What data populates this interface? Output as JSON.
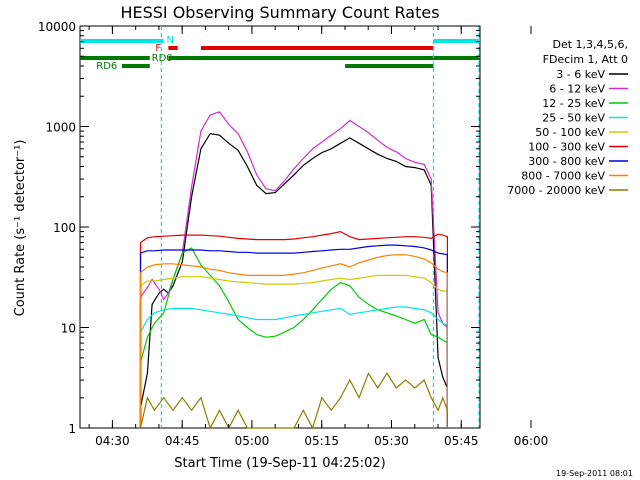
{
  "chart_data": {
    "type": "line",
    "title": "HESSI Observing Summary Count Rates",
    "xlabel": "Start Time (19-Sep-11 04:25:02)",
    "ylabel": "Count Rate (s⁻¹ detector⁻¹)",
    "x_tick_labels": [
      "04:30",
      "04:45",
      "05:00",
      "05:15",
      "05:30",
      "05:45",
      "06:00"
    ],
    "x_range_minutes": [
      -2,
      84
    ],
    "y_scale": "log",
    "y_tick_labels": [
      "1",
      "10",
      "100",
      "1000",
      "10000"
    ],
    "y_range": [
      1,
      10000
    ],
    "footer": "19-Sep-2011 08:01",
    "legend": {
      "header": [
        "Det 1,3,4,5,6,",
        "FDecim 1, Att 0"
      ],
      "entries": [
        {
          "label": "3 - 6 keV",
          "color": "#000000"
        },
        {
          "label": "6 - 12 keV",
          "color": "#d22ad2"
        },
        {
          "label": "12 - 25 keV",
          "color": "#00cc00"
        },
        {
          "label": "25 - 50 keV",
          "color": "#00e5e5"
        },
        {
          "label": "50 - 100 keV",
          "color": "#cccc00"
        },
        {
          "label": "100 - 300 keV",
          "color": "#e00000"
        },
        {
          "label": "300 - 800 keV",
          "color": "#0000e0"
        },
        {
          "label": "800 - 7000 keV",
          "color": "#ff8000"
        },
        {
          "label": "7000 - 20000 keV",
          "color": "#8b7d00"
        }
      ]
    },
    "flags": [
      {
        "label": "N",
        "color": "#00e5e5",
        "segments": [
          [
            -2,
            16
          ],
          [
            74,
            84
          ]
        ]
      },
      {
        "label": "F",
        "color": "#e00000",
        "segments": [
          [
            17,
            19
          ],
          [
            24,
            74
          ]
        ]
      },
      {
        "label": "RD0",
        "color": "#007a00",
        "segments": [
          [
            -2,
            13
          ],
          [
            17,
            84
          ]
        ]
      },
      {
        "label": "RD6",
        "color": "#007a00",
        "segments": [
          [
            7,
            13
          ],
          [
            55,
            74
          ]
        ]
      }
    ],
    "night_boundaries_minutes": [
      15.5,
      74,
      85
    ],
    "series": [
      {
        "color": "#000000",
        "x": [
          11,
          12.5,
          13.5,
          15,
          16,
          17,
          18,
          20,
          22,
          24,
          26,
          28,
          30,
          32,
          34,
          36,
          38,
          40,
          42,
          44,
          46,
          48,
          50,
          52,
          54,
          56,
          58,
          60,
          62,
          64,
          66,
          68,
          70,
          72,
          73.5,
          75,
          76,
          77
        ],
        "y": [
          1.6,
          3.5,
          17,
          22,
          24,
          22,
          26,
          45,
          200,
          600,
          850,
          820,
          680,
          580,
          400,
          260,
          215,
          220,
          270,
          330,
          410,
          480,
          550,
          600,
          680,
          770,
          680,
          600,
          530,
          480,
          450,
          400,
          390,
          370,
          260,
          5,
          3.2,
          2.5
        ]
      },
      {
        "color": "#d22ad2",
        "x": [
          11,
          12.5,
          13.5,
          15,
          16,
          17,
          18,
          20,
          22,
          24,
          26,
          28,
          30,
          32,
          34,
          36,
          38,
          40,
          42,
          44,
          46,
          48,
          50,
          52,
          54,
          56,
          58,
          60,
          62,
          64,
          66,
          68,
          70,
          72,
          73.5,
          75,
          76,
          77
        ],
        "y": [
          20,
          25,
          30,
          24,
          19,
          22,
          30,
          55,
          250,
          900,
          1300,
          1400,
          1050,
          850,
          560,
          330,
          240,
          230,
          290,
          380,
          480,
          600,
          700,
          820,
          950,
          1150,
          1000,
          870,
          730,
          620,
          560,
          480,
          440,
          420,
          300,
          14,
          11,
          10
        ]
      },
      {
        "color": "#00cc00",
        "x": [
          11,
          12.5,
          14,
          16,
          18,
          20,
          22,
          24,
          26,
          28,
          30,
          32,
          34,
          36,
          38,
          40,
          42,
          44,
          46,
          48,
          50,
          52,
          54,
          56,
          58,
          60,
          62,
          64,
          66,
          68,
          70,
          72,
          73.5,
          75,
          76,
          77
        ],
        "y": [
          4.5,
          8,
          11,
          14,
          30,
          55,
          62,
          42,
          33,
          26,
          18,
          12,
          10,
          8.5,
          8,
          8.2,
          9,
          10,
          12,
          15,
          19,
          24,
          28,
          26,
          20,
          17,
          15,
          14,
          13,
          12,
          11,
          12,
          8.5,
          8,
          7.5,
          7
        ]
      },
      {
        "color": "#00e5e5",
        "x": [
          11,
          12.5,
          14,
          16,
          18,
          20,
          22,
          24,
          26,
          28,
          30,
          32,
          34,
          36,
          38,
          40,
          42,
          44,
          46,
          48,
          50,
          52,
          54,
          56,
          58,
          60,
          62,
          64,
          66,
          68,
          70,
          72,
          73.5,
          75,
          76,
          77
        ],
        "y": [
          9,
          12,
          14,
          15,
          15.5,
          15.5,
          15.5,
          15,
          14.5,
          14,
          13.5,
          13,
          12.5,
          12,
          12,
          12,
          12.5,
          13,
          13.5,
          14,
          14.5,
          15,
          15.5,
          13.5,
          14,
          14.5,
          15,
          15.5,
          16,
          16,
          15.5,
          15,
          14,
          12,
          11,
          10.5
        ]
      },
      {
        "color": "#cccc00",
        "x": [
          11,
          12.5,
          14,
          16,
          18,
          20,
          22,
          24,
          26,
          28,
          30,
          32,
          34,
          36,
          38,
          40,
          42,
          44,
          46,
          48,
          50,
          52,
          54,
          56,
          58,
          60,
          62,
          64,
          66,
          68,
          70,
          72,
          73.5,
          75,
          76,
          77
        ],
        "y": [
          26,
          29,
          29,
          30,
          31,
          32,
          32,
          32,
          31,
          30,
          29,
          28.5,
          28,
          27.5,
          27,
          27,
          27,
          27,
          27.5,
          28,
          29,
          30,
          31,
          30,
          31,
          32,
          33,
          33,
          33,
          33,
          32,
          31,
          28,
          24,
          23,
          23
        ]
      },
      {
        "color": "#e00000",
        "x": [
          11,
          12.5,
          14,
          16,
          18,
          20,
          22,
          24,
          26,
          28,
          30,
          32,
          34,
          36,
          38,
          40,
          42,
          44,
          46,
          48,
          50,
          52,
          54,
          56,
          58,
          60,
          62,
          64,
          66,
          68,
          70,
          72,
          73.5,
          75,
          76,
          77
        ],
        "y": [
          70,
          78,
          80,
          81,
          82,
          83,
          83,
          83,
          82,
          81,
          79,
          77,
          76,
          75,
          75,
          75,
          75,
          76,
          78,
          80,
          83,
          86,
          90,
          80,
          75,
          76,
          77,
          78,
          79,
          80,
          80,
          79,
          77,
          85,
          83,
          80
        ]
      },
      {
        "color": "#0000e0",
        "x": [
          11,
          12.5,
          14,
          16,
          18,
          20,
          22,
          24,
          26,
          28,
          30,
          32,
          34,
          36,
          38,
          40,
          42,
          44,
          46,
          48,
          50,
          52,
          54,
          56,
          58,
          60,
          62,
          64,
          66,
          68,
          70,
          72,
          73.5,
          75,
          76,
          77
        ],
        "y": [
          55,
          58,
          58,
          59,
          59,
          59,
          59,
          59,
          58,
          58,
          57,
          56,
          56,
          55,
          55,
          55,
          55,
          55,
          56,
          57,
          58,
          59,
          60,
          60,
          62,
          64,
          65,
          66,
          66,
          65,
          64,
          62,
          59,
          55,
          54,
          53
        ]
      },
      {
        "color": "#ff8000",
        "x": [
          11,
          12.5,
          14,
          16,
          18,
          20,
          22,
          24,
          26,
          28,
          30,
          32,
          34,
          36,
          38,
          40,
          42,
          44,
          46,
          48,
          50,
          52,
          54,
          56,
          58,
          60,
          62,
          64,
          66,
          68,
          70,
          72,
          73.5,
          75,
          76,
          77
        ],
        "y": [
          35,
          40,
          42,
          43,
          43,
          42,
          41,
          40,
          38,
          37,
          35,
          34,
          33,
          33,
          33,
          33,
          33,
          34,
          35,
          37,
          39,
          41,
          43,
          40,
          44,
          47,
          50,
          52,
          53,
          53,
          51,
          48,
          44,
          38,
          36,
          35
        ]
      },
      {
        "color": "#8b7d00",
        "x": [
          11,
          12.5,
          14,
          16,
          18,
          20,
          22,
          24,
          26,
          28,
          30,
          32,
          34,
          36,
          38,
          40,
          42,
          44,
          46,
          48,
          50,
          52,
          54,
          56,
          58,
          60,
          62,
          64,
          66,
          68,
          70,
          72,
          73.5,
          75,
          76,
          77
        ],
        "y": [
          1,
          2,
          1.5,
          2,
          1.5,
          2,
          1.5,
          2,
          1,
          1.5,
          1,
          1.5,
          1,
          1,
          1,
          1,
          1,
          1,
          1.5,
          1,
          2,
          1.5,
          2,
          3,
          2,
          3.5,
          2.5,
          3.5,
          2.5,
          3,
          2.5,
          3,
          2,
          1.5,
          2,
          1.5
        ]
      }
    ]
  }
}
